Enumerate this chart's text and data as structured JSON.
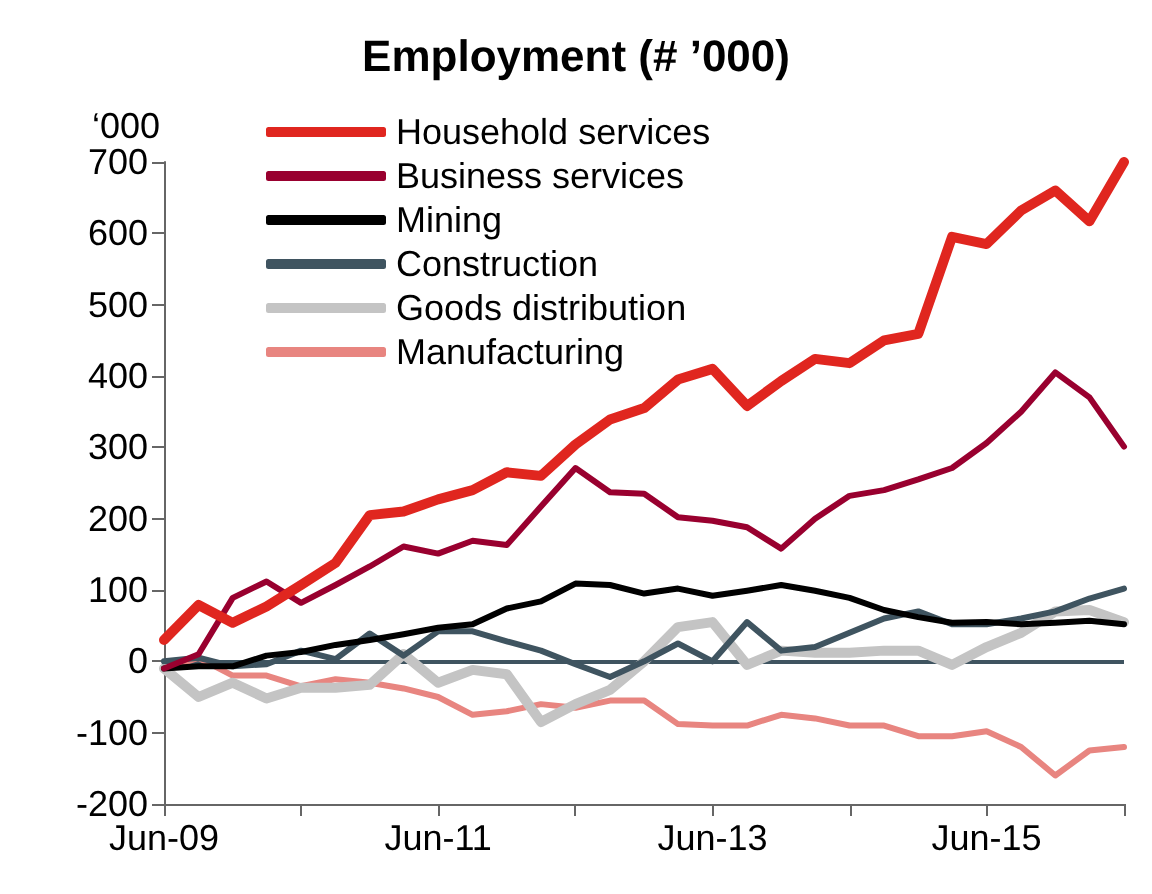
{
  "chart_data": {
    "type": "line",
    "title": "Employment (# ’000)",
    "ylabel": "‘000",
    "x": [
      "2009-06",
      "2009-09",
      "2009-12",
      "2010-03",
      "2010-06",
      "2010-09",
      "2010-12",
      "2011-03",
      "2011-06",
      "2011-09",
      "2011-12",
      "2012-03",
      "2012-06",
      "2012-09",
      "2012-12",
      "2013-03",
      "2013-06",
      "2013-09",
      "2013-12",
      "2014-03",
      "2014-06",
      "2014-09",
      "2014-12",
      "2015-03",
      "2015-06",
      "2015-09",
      "2015-12",
      "2016-03",
      "2016-06"
    ],
    "series": [
      {
        "name": "Household services",
        "color": "#e0261f",
        "values": [
          30,
          79,
          54,
          77,
          107,
          138,
          205,
          210,
          227,
          240,
          265,
          260,
          304,
          339,
          355,
          395,
          410,
          358,
          393,
          424,
          418,
          450,
          459,
          595,
          585,
          632,
          660,
          617,
          700
        ]
      },
      {
        "name": "Business services",
        "color": "#99002f",
        "values": [
          -10,
          10,
          89,
          112,
          82,
          107,
          133,
          161,
          151,
          169,
          163,
          217,
          271,
          237,
          235,
          202,
          197,
          188,
          158,
          200,
          232,
          240,
          255,
          271,
          306,
          350,
          405,
          370,
          301
        ]
      },
      {
        "name": "Mining",
        "color": "#000000",
        "values": [
          -10,
          -7,
          -7,
          8,
          13,
          23,
          30,
          38,
          47,
          52,
          74,
          84,
          109,
          107,
          95,
          102,
          92,
          99,
          107,
          99,
          89,
          72,
          62,
          54,
          55,
          52,
          54,
          57,
          52
        ]
      },
      {
        "name": "Construction",
        "color": "#3f5460",
        "values": [
          0,
          5,
          -7,
          -4,
          15,
          3,
          39,
          8,
          42,
          42,
          28,
          15,
          -4,
          -22,
          0,
          25,
          0,
          55,
          15,
          20,
          40,
          60,
          70,
          52,
          52,
          60,
          70,
          88,
          102
        ]
      },
      {
        "name": "Goods distribution",
        "color": "#c4c4c4",
        "values": [
          -10,
          -50,
          -30,
          -52,
          -37,
          -37,
          -33,
          10,
          -30,
          -12,
          -18,
          -85,
          -60,
          -40,
          0,
          48,
          55,
          -5,
          15,
          12,
          12,
          15,
          15,
          -5,
          20,
          40,
          70,
          72,
          55
        ]
      },
      {
        "name": "Manufacturing",
        "color": "#e88580",
        "values": [
          -12,
          5,
          -20,
          -20,
          -35,
          -25,
          -30,
          -38,
          -50,
          -75,
          -70,
          -60,
          -65,
          -55,
          -55,
          -88,
          -90,
          -90,
          -75,
          -80,
          -90,
          -90,
          -105,
          -105,
          -98,
          -120,
          -160,
          -125,
          -120
        ]
      }
    ],
    "xlim": [
      "2009-06",
      "2016-06"
    ],
    "xticks": [
      {
        "value": "2009-06",
        "label": "Jun-09"
      },
      {
        "value": "2010-06",
        "label": null
      },
      {
        "value": "2011-06",
        "label": "Jun-11"
      },
      {
        "value": "2012-06",
        "label": null
      },
      {
        "value": "2013-06",
        "label": "Jun-13"
      },
      {
        "value": "2014-06",
        "label": null
      },
      {
        "value": "2015-06",
        "label": "Jun-15"
      },
      {
        "value": "2016-06",
        "label": null
      }
    ],
    "ylim": [
      -200,
      700
    ],
    "yticks": [
      -200,
      -100,
      0,
      100,
      200,
      300,
      400,
      500,
      600,
      700
    ],
    "ref_lines": [
      {
        "axis": "y",
        "value": 0,
        "color": "#3f5460"
      }
    ],
    "grid": false,
    "legend": "top left",
    "marker": "none",
    "line_style": "solid"
  }
}
